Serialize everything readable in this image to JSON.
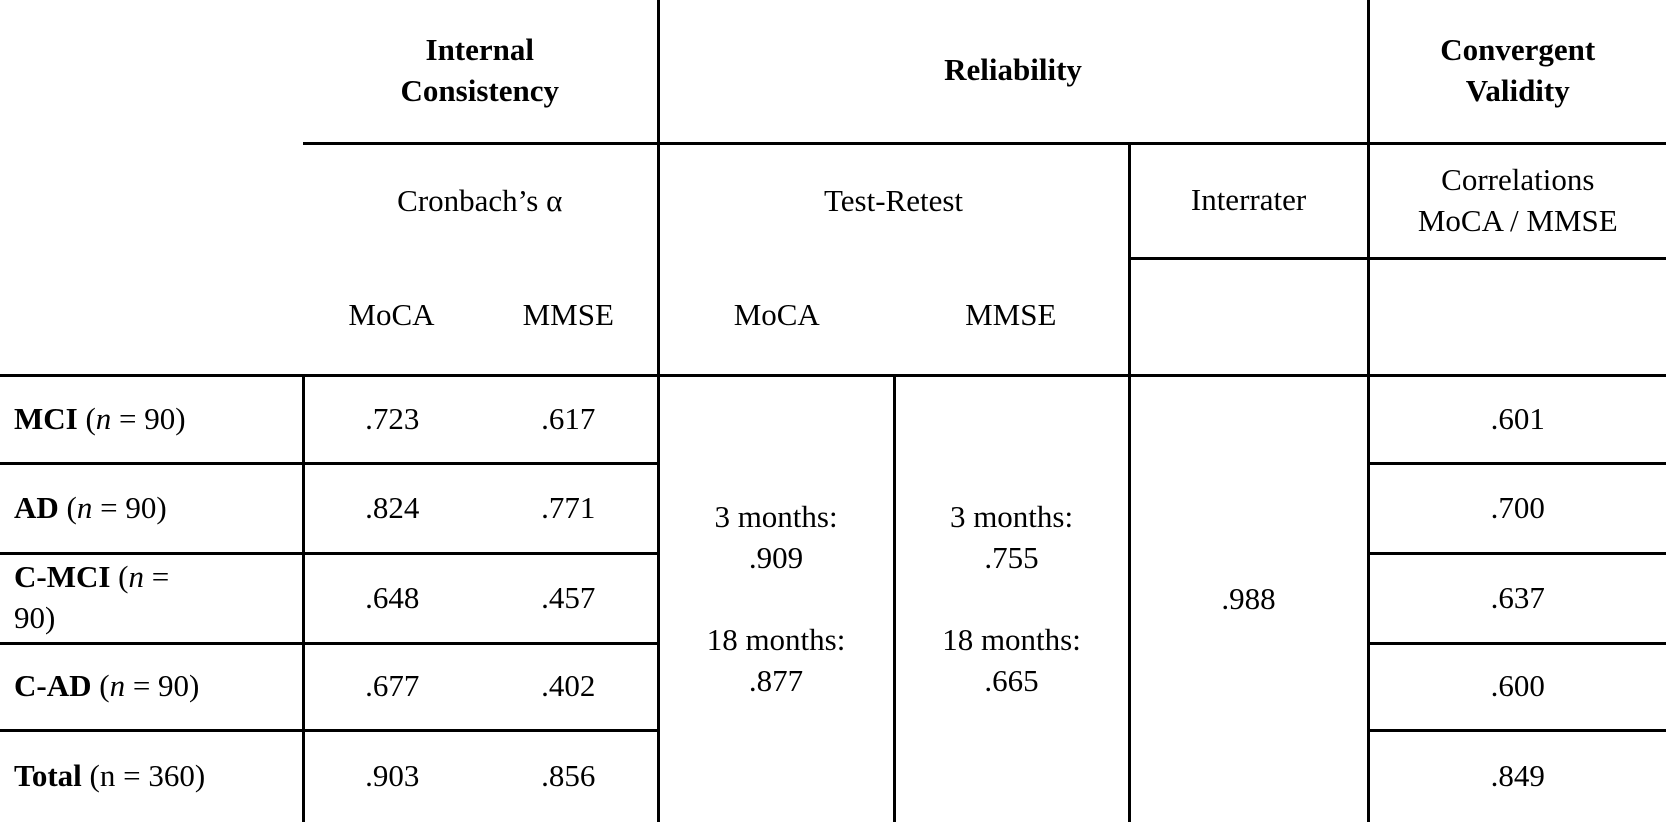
{
  "page": {
    "background_color": "#ffffff",
    "text_color": "#000000",
    "border_color": "#000000"
  },
  "header": {
    "internal_consistency": "Internal\nConsistency",
    "reliability": "Reliability",
    "convergent_validity": "Convergent\nValidity",
    "cronbachs_alpha": "Cronbach’s α",
    "test_retest": "Test-Retest",
    "interrater": "Interrater",
    "correlations": "Correlations\nMoCA / MMSE",
    "ic_subcols": [
      "MoCA",
      "MMSE"
    ],
    "tr_subcols": [
      "MoCA",
      "MMSE"
    ]
  },
  "body_rows": [
    {
      "label": [
        {
          "t": "MCI",
          "b": true
        },
        {
          "t": " ("
        },
        {
          "t": "n",
          "i": true
        },
        {
          "t": " = 90)"
        }
      ],
      "cronbach_moca": ".723",
      "cronbach_mmse": ".617",
      "convergent": ".601"
    },
    {
      "label": [
        {
          "t": "AD",
          "b": true
        },
        {
          "t": " ("
        },
        {
          "t": "n",
          "i": true
        },
        {
          "t": " = 90)"
        }
      ],
      "cronbach_moca": ".824",
      "cronbach_mmse": ".771",
      "convergent": ".700"
    },
    {
      "label": [
        {
          "t": "C-MCI",
          "b": true
        },
        {
          "t": " ("
        },
        {
          "t": "n",
          "i": true
        },
        {
          "t": " =\n90)"
        }
      ],
      "cronbach_moca": ".648",
      "cronbach_mmse": ".457",
      "convergent": ".637"
    },
    {
      "label": [
        {
          "t": "C-AD",
          "b": true
        },
        {
          "t": " ("
        },
        {
          "t": "n",
          "i": true
        },
        {
          "t": " = 90)"
        }
      ],
      "cronbach_moca": ".677",
      "cronbach_mmse": ".402",
      "convergent": ".600"
    },
    {
      "label": [
        {
          "t": "Total",
          "b": true
        },
        {
          "t": " (n = 360)"
        }
      ],
      "cronbach_moca": ".903",
      "cronbach_mmse": ".856",
      "convergent": ".849"
    }
  ],
  "merged_cells": {
    "test_retest_moca": "3 months:\n.909\n\n18 months:\n.877",
    "test_retest_mmse": "3 months:\n.755\n\n18 months:\n.665",
    "interrater": ".988"
  }
}
